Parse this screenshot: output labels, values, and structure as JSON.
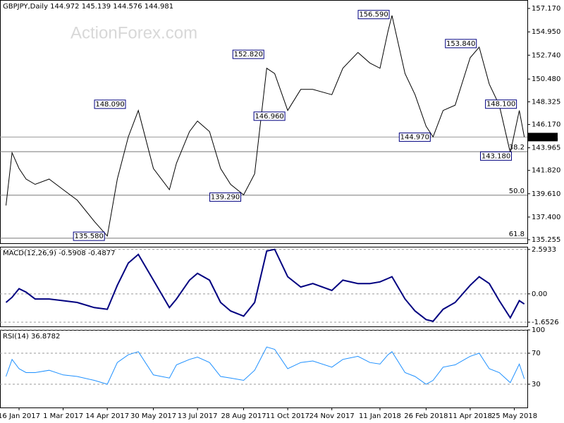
{
  "watermark": "ActionForex.com",
  "chart_data": [
    {
      "type": "line",
      "title": "GBPJPY,Daily  144.972 145.139 144.576 144.981",
      "color": "#000000",
      "x": [
        "3 Jan 2017",
        "9 Jan 2017",
        "16 Jan 2017",
        "23 Jan 2017",
        "1 Feb 2017",
        "15 Feb 2017",
        "1 Mar 2017",
        "15 Mar 2017",
        "1 Apr 2017",
        "14 Apr 2017",
        "24 Apr 2017",
        "5 May 2017",
        "15 May 2017",
        "30 May 2017",
        "15 Jun 2017",
        "22 Jun 2017",
        "5 Jul 2017",
        "13 Jul 2017",
        "25 Jul 2017",
        "5 Aug 2017",
        "15 Aug 2017",
        "28 Aug 2017",
        "8 Sep 2017",
        "20 Sep 2017",
        "28 Sep 2017",
        "11 Oct 2017",
        "24 Oct 2017",
        "5 Nov 2017",
        "24 Nov 2017",
        "5 Dec 2017",
        "20 Dec 2017",
        "1 Jan 2018",
        "11 Jan 2018",
        "19 Jan 2018",
        "23 Jan 2018",
        "5 Feb 2018",
        "15 Feb 2018",
        "26 Feb 2018",
        "5 Mar 2018",
        "15 Mar 2018",
        "27 Mar 2018",
        "11 Apr 2018",
        "20 Apr 2018",
        "30 Apr 2018",
        "10 May 2018",
        "21 May 2018",
        "30 May 2018",
        "4 Jun 2018"
      ],
      "values": [
        138.5,
        143.5,
        142.0,
        141.0,
        140.5,
        141.0,
        140.0,
        139.0,
        137.0,
        135.6,
        141.0,
        145.0,
        147.5,
        142.0,
        140.0,
        142.5,
        145.5,
        146.5,
        145.5,
        142.0,
        140.5,
        139.5,
        141.5,
        151.5,
        151.0,
        147.5,
        149.5,
        149.5,
        149.0,
        151.5,
        153.0,
        152.0,
        151.5,
        155.0,
        156.5,
        151.0,
        149.0,
        146.0,
        145.0,
        147.5,
        148.0,
        152.5,
        153.5,
        150.0,
        148.0,
        143.5,
        147.5,
        144.981
      ],
      "xlim": [
        "28 Dec 2016",
        "7 Jun 2018"
      ],
      "ylim": [
        134.92,
        157.97
      ],
      "yticks": [
        157.17,
        154.95,
        152.74,
        150.48,
        148.325,
        146.17,
        143.965,
        141.82,
        139.61,
        137.4,
        135.255
      ],
      "ytick_labels": [
        "157.170",
        "154.950",
        "152.740",
        "150.480",
        "148.325",
        "146.170",
        "143.965",
        "141.820",
        "139.610",
        "137.400",
        "135.255"
      ],
      "current_price": 144.981,
      "annotations": [
        {
          "label": "156.590",
          "price": 156.59,
          "date": "23 Jan 2018"
        },
        {
          "label": "152.820",
          "price": 152.82,
          "date": "20 Sep 2017"
        },
        {
          "label": "148.090",
          "price": 148.09,
          "date": "5 May 2017"
        },
        {
          "label": "146.960",
          "price": 146.96,
          "date": "11 Oct 2017"
        },
        {
          "label": "144.970",
          "price": 144.97,
          "date": "5 Mar 2018"
        },
        {
          "label": "143.180",
          "price": 143.18,
          "date": "25 May 2018"
        },
        {
          "label": "148.100",
          "price": 148.1,
          "date": "30 May 2018"
        },
        {
          "label": "153.840",
          "price": 153.84,
          "date": "20 Apr 2018"
        },
        {
          "label": "139.290",
          "price": 139.29,
          "date": "28 Aug 2017"
        },
        {
          "label": "135.580",
          "price": 135.58,
          "date": "14 Apr 2017"
        }
      ],
      "levels": [
        {
          "label": "38.2",
          "price": 143.6
        },
        {
          "label": "50.0",
          "price": 139.47
        },
        {
          "label": "61.8",
          "price": 135.4
        }
      ]
    },
    {
      "type": "line",
      "title": "MACD(12,26,9) -0.5908 -0.4877",
      "color": "#000080",
      "x": [
        "3 Jan 2017",
        "9 Jan 2017",
        "16 Jan 2017",
        "23 Jan 2017",
        "1 Feb 2017",
        "15 Feb 2017",
        "1 Mar 2017",
        "15 Mar 2017",
        "1 Apr 2017",
        "14 Apr 2017",
        "24 Apr 2017",
        "5 May 2017",
        "15 May 2017",
        "30 May 2017",
        "15 Jun 2017",
        "22 Jun 2017",
        "5 Jul 2017",
        "13 Jul 2017",
        "25 Jul 2017",
        "5 Aug 2017",
        "15 Aug 2017",
        "28 Aug 2017",
        "8 Sep 2017",
        "20 Sep 2017",
        "28 Sep 2017",
        "11 Oct 2017",
        "24 Oct 2017",
        "5 Nov 2017",
        "24 Nov 2017",
        "5 Dec 2017",
        "20 Dec 2017",
        "1 Jan 2018",
        "11 Jan 2018",
        "19 Jan 2018",
        "23 Jan 2018",
        "5 Feb 2018",
        "15 Feb 2018",
        "26 Feb 2018",
        "5 Mar 2018",
        "15 Mar 2018",
        "27 Mar 2018",
        "11 Apr 2018",
        "20 Apr 2018",
        "30 Apr 2018",
        "10 May 2018",
        "21 May 2018",
        "30 May 2018",
        "4 Jun 2018"
      ],
      "values": [
        -0.5,
        -0.2,
        0.3,
        0.1,
        -0.3,
        -0.3,
        -0.4,
        -0.5,
        -0.8,
        -0.9,
        0.5,
        1.8,
        2.3,
        0.8,
        -0.8,
        -0.3,
        0.8,
        1.2,
        0.8,
        -0.5,
        -1.0,
        -1.3,
        -0.5,
        2.5,
        2.6,
        1.0,
        0.4,
        0.6,
        0.2,
        0.8,
        0.6,
        0.6,
        0.7,
        0.9,
        1.0,
        -0.3,
        -1.0,
        -1.5,
        -1.6,
        -0.9,
        -0.5,
        0.5,
        1.0,
        0.6,
        -0.4,
        -1.4,
        -0.4,
        -0.59
      ],
      "xlim": [
        "28 Dec 2016",
        "7 Jun 2018"
      ],
      "ylim": [
        -1.9,
        2.75
      ],
      "yticks": [
        2.5933,
        {
          "value": 0,
          "label": "0.00"
        },
        -1.6526
      ]
    },
    {
      "type": "line",
      "title": "RSI(14) 36.8782",
      "color": "#1e90ff",
      "x": [
        "3 Jan 2017",
        "9 Jan 2017",
        "16 Jan 2017",
        "23 Jan 2017",
        "1 Feb 2017",
        "15 Feb 2017",
        "1 Mar 2017",
        "15 Mar 2017",
        "1 Apr 2017",
        "14 Apr 2017",
        "24 Apr 2017",
        "5 May 2017",
        "15 May 2017",
        "30 May 2017",
        "15 Jun 2017",
        "22 Jun 2017",
        "5 Jul 2017",
        "13 Jul 2017",
        "25 Jul 2017",
        "5 Aug 2017",
        "15 Aug 2017",
        "28 Aug 2017",
        "8 Sep 2017",
        "20 Sep 2017",
        "28 Sep 2017",
        "11 Oct 2017",
        "24 Oct 2017",
        "5 Nov 2017",
        "24 Nov 2017",
        "5 Dec 2017",
        "20 Dec 2017",
        "1 Jan 2018",
        "11 Jan 2018",
        "19 Jan 2018",
        "23 Jan 2018",
        "5 Feb 2018",
        "15 Feb 2018",
        "26 Feb 2018",
        "5 Mar 2018",
        "15 Mar 2018",
        "27 Mar 2018",
        "11 Apr 2018",
        "20 Apr 2018",
        "30 Apr 2018",
        "10 May 2018",
        "21 May 2018",
        "30 May 2018",
        "4 Jun 2018"
      ],
      "values": [
        40,
        62,
        50,
        45,
        45,
        48,
        42,
        40,
        35,
        30,
        58,
        68,
        72,
        42,
        38,
        55,
        62,
        65,
        58,
        40,
        38,
        35,
        48,
        78,
        75,
        50,
        58,
        60,
        52,
        62,
        66,
        58,
        56,
        68,
        72,
        45,
        40,
        30,
        35,
        52,
        55,
        66,
        70,
        50,
        45,
        32,
        56,
        37
      ],
      "xlim": [
        "28 Dec 2016",
        "7 Jun 2018"
      ],
      "ylim": [
        0,
        100
      ],
      "yticks": [
        100,
        70,
        30
      ],
      "xticks": [
        "16 Jan 2017",
        "1 Mar 2017",
        "14 Apr 2017",
        "30 May 2017",
        "13 Jul 2017",
        "28 Aug 2017",
        "11 Oct 2017",
        "24 Nov 2017",
        "11 Jan 2018",
        "26 Feb 2018",
        "11 Apr 2018",
        "25 May 2018"
      ]
    }
  ]
}
